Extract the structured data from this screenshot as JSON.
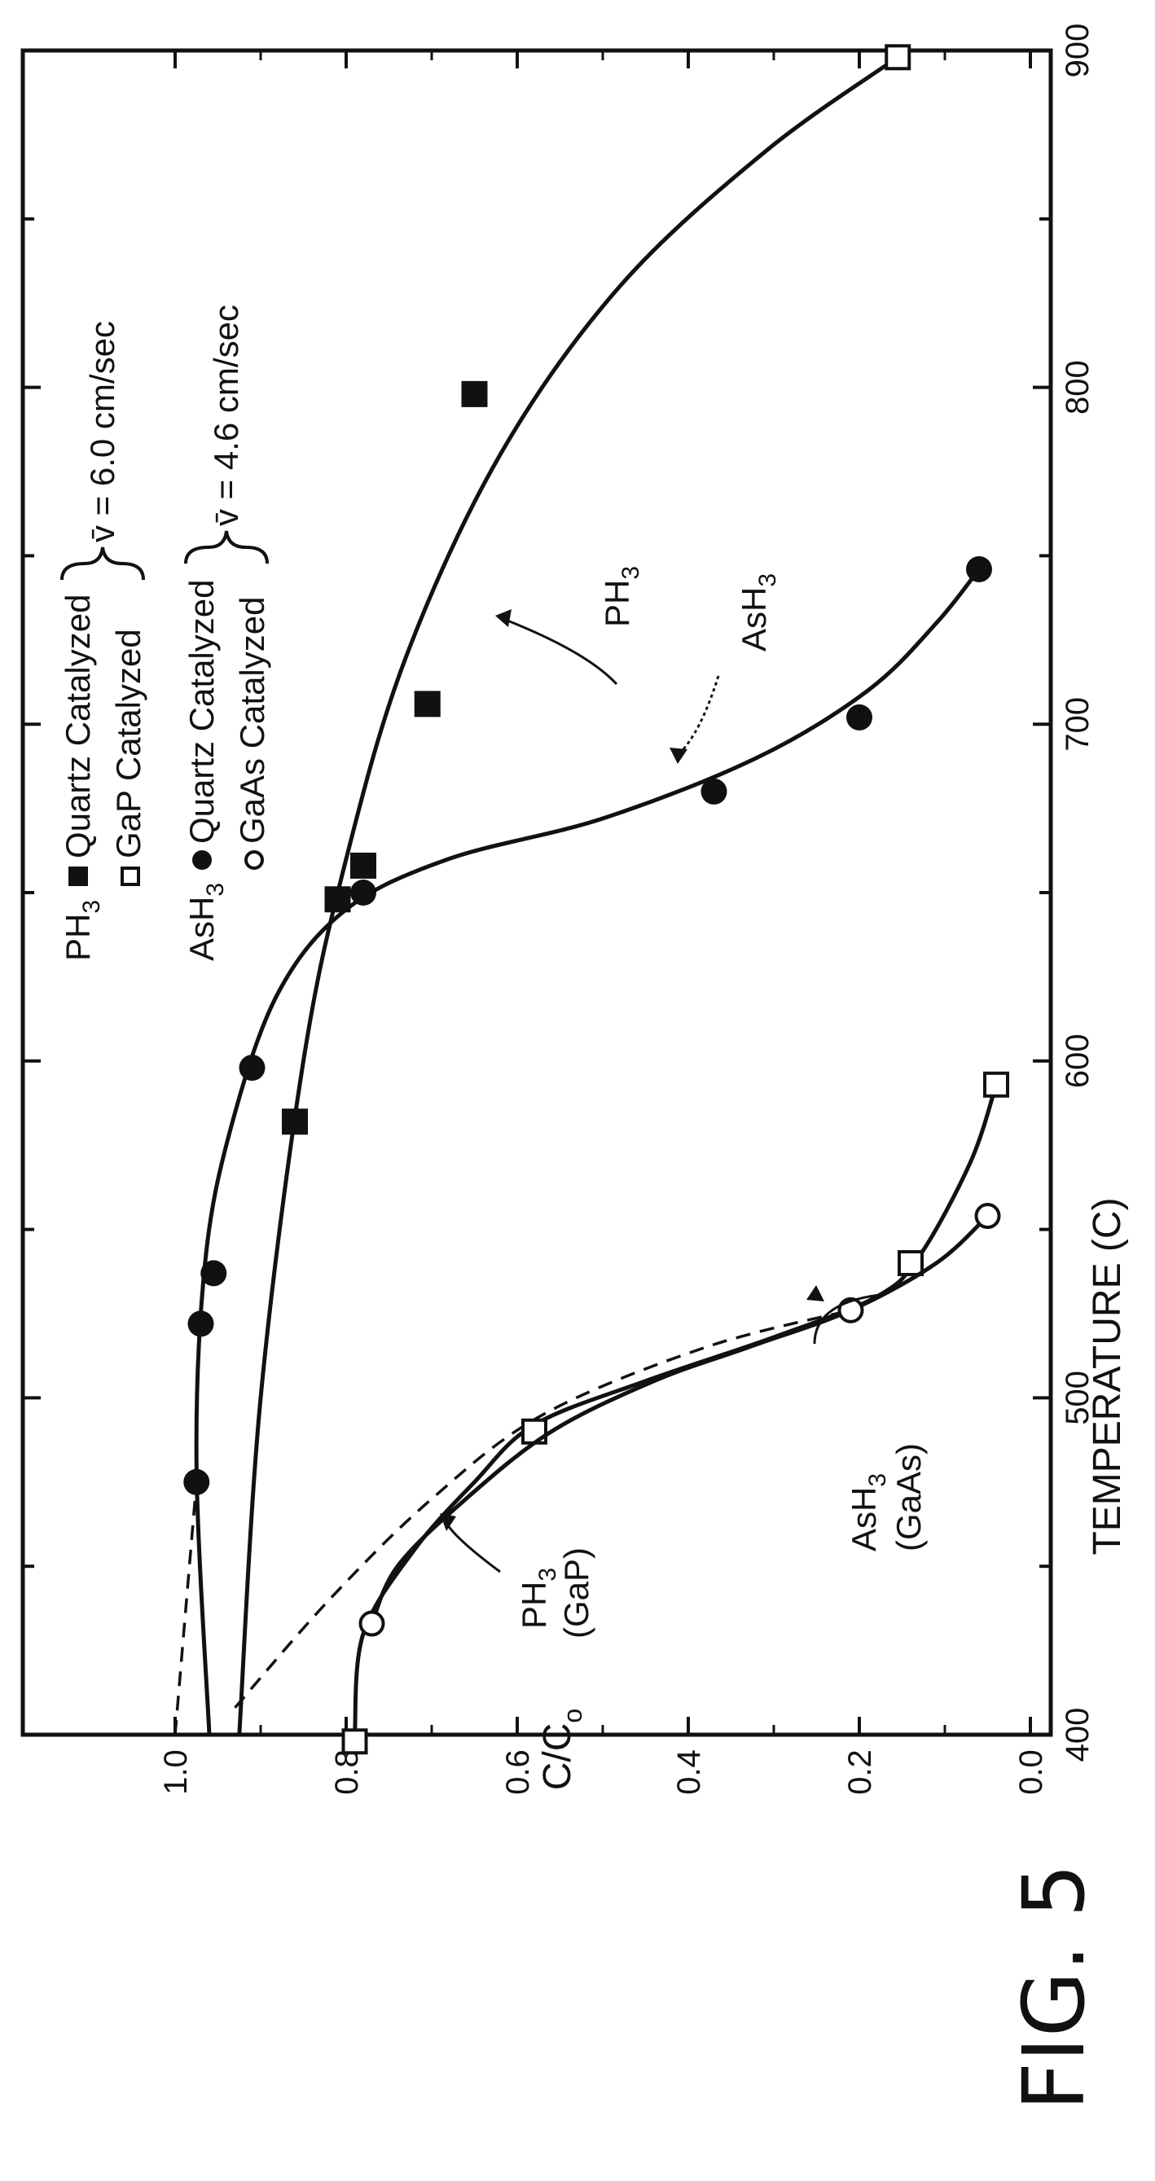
{
  "figure_label": "FIG. 5",
  "chart_data": {
    "type": "scatter",
    "xlabel": "TEMPERATURE (C)",
    "ylabel_main": "C/C",
    "ylabel_sub": "o",
    "xlim": [
      400,
      900
    ],
    "ylim": [
      0.0,
      1.0
    ],
    "x_ticks": [
      "400",
      "500",
      "600",
      "700",
      "800",
      "900"
    ],
    "y_ticks": [
      "0.0",
      "0.2",
      "0.4",
      "0.6",
      "0.8",
      "1.0"
    ],
    "legend": {
      "ph3_label": "PH",
      "ph3_sub": "3",
      "ph3_quartz": "Quartz Catalyzed",
      "ph3_gap": "GaP Catalyzed",
      "ph3_velocity": "v̄ = 6.0 cm/sec",
      "ash3_label": "AsH",
      "ash3_sub": "3",
      "ash3_quartz": "Quartz Catalyzed",
      "ash3_gaas": "GaAs Catalyzed",
      "ash3_velocity": "v̄ = 4.6 cm/sec"
    },
    "annotations": {
      "ph3": "PH",
      "ph3_sub": "3",
      "ash3": "AsH",
      "ash3_sub": "3",
      "ph3_gap_line1": "PH",
      "ph3_gap_sub": "3",
      "ph3_gap_line2": "(GaP)",
      "ash3_gaas_line1": "AsH",
      "ash3_gaas_sub": "3",
      "ash3_gaas_line2": "(GaAs)"
    },
    "series": [
      {
        "name": "AsH3 Quartz Catalyzed",
        "marker": "filled-circle",
        "points": [
          [
            475,
            0.975
          ],
          [
            522,
            0.97
          ],
          [
            537,
            0.955
          ],
          [
            598,
            0.91
          ],
          [
            650,
            0.78
          ],
          [
            680,
            0.37
          ],
          [
            702,
            0.2
          ],
          [
            746,
            0.06
          ]
        ],
        "curve": [
          [
            400,
            0.96
          ],
          [
            480,
            0.975
          ],
          [
            540,
            0.965
          ],
          [
            580,
            0.935
          ],
          [
            620,
            0.88
          ],
          [
            645,
            0.8
          ],
          [
            660,
            0.68
          ],
          [
            672,
            0.5
          ],
          [
            690,
            0.32
          ],
          [
            710,
            0.19
          ],
          [
            730,
            0.11
          ],
          [
            746,
            0.06
          ]
        ]
      },
      {
        "name": "PH3 Quartz Catalyzed",
        "marker": "filled-square",
        "points": [
          [
            582,
            0.86
          ],
          [
            648,
            0.81
          ],
          [
            658,
            0.78
          ],
          [
            706,
            0.705
          ],
          [
            798,
            0.65
          ]
        ],
        "curve": [
          [
            400,
            0.925
          ],
          [
            500,
            0.9
          ],
          [
            600,
            0.85
          ],
          [
            660,
            0.8
          ],
          [
            720,
            0.73
          ],
          [
            780,
            0.62
          ],
          [
            830,
            0.48
          ],
          [
            870,
            0.31
          ],
          [
            898,
            0.155
          ]
        ]
      },
      {
        "name": "PH3 GaP Catalyzed",
        "marker": "open-square",
        "points": [
          [
            398,
            0.79
          ],
          [
            490,
            0.58
          ],
          [
            540,
            0.14
          ],
          [
            593,
            0.04
          ],
          [
            898,
            0.155
          ]
        ],
        "curve": [
          [
            400,
            0.79
          ],
          [
            430,
            0.78
          ],
          [
            455,
            0.72
          ],
          [
            475,
            0.65
          ],
          [
            492,
            0.58
          ],
          [
            505,
            0.45
          ],
          [
            518,
            0.3
          ],
          [
            530,
            0.18
          ],
          [
            542,
            0.13
          ],
          [
            570,
            0.07
          ],
          [
            593,
            0.04
          ]
        ]
      },
      {
        "name": "AsH3 GaAs Catalyzed",
        "marker": "open-circle",
        "points": [
          [
            433,
            0.77
          ],
          [
            526,
            0.21
          ],
          [
            554,
            0.05
          ]
        ],
        "curve": [
          [
            433,
            0.77
          ],
          [
            450,
            0.74
          ],
          [
            470,
            0.66
          ],
          [
            490,
            0.56
          ],
          [
            505,
            0.44
          ],
          [
            515,
            0.33
          ],
          [
            526,
            0.21
          ],
          [
            540,
            0.11
          ],
          [
            554,
            0.05
          ]
        ]
      }
    ],
    "dashed_lines": [
      [
        [
          400,
          1.0
        ],
        [
          475,
          0.975
        ]
      ],
      [
        [
          408,
          0.93
        ],
        [
          440,
          0.82
        ],
        [
          470,
          0.7
        ],
        [
          495,
          0.57
        ],
        [
          515,
          0.38
        ],
        [
          526,
          0.21
        ]
      ]
    ]
  }
}
